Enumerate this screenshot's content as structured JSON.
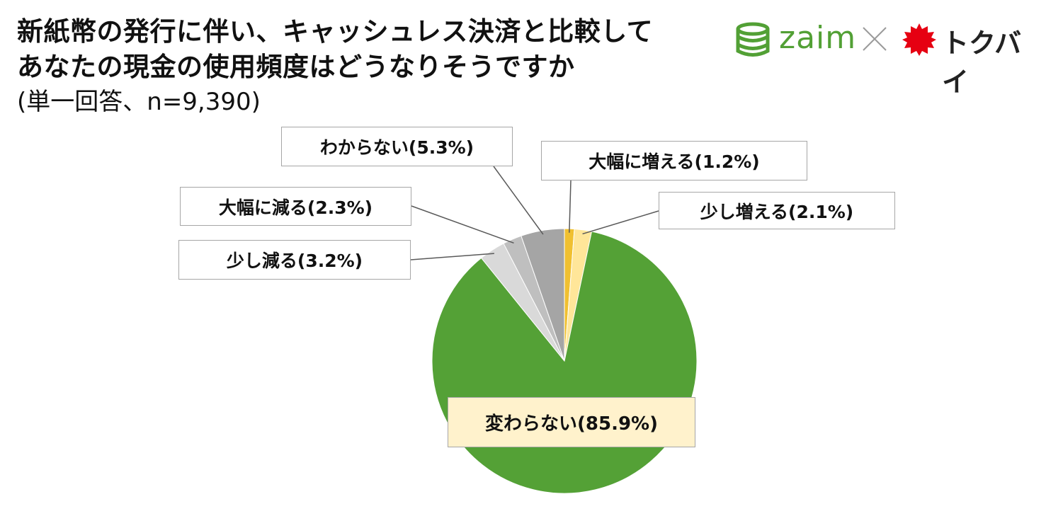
{
  "header": {
    "title_line1": "新紙幣の発行に伴い、キャッシュレス決済と比較して",
    "title_line2": "あなたの現金の使用頻度はどうなりそうですか",
    "subtitle": "(単一回答、n=9,390)"
  },
  "logos": {
    "zaim": "zaim",
    "separator": "×",
    "tokubai": "トクバイ",
    "zaim_color": "#52a035",
    "tokubai_color": "#e60012"
  },
  "chart_data": {
    "type": "pie",
    "title": "新紙幣の発行に伴い、キャッシュレス決済と比較してあなたの現金の使用頻度はどうなりそうですか",
    "subtitle": "(単一回答、n=9,390)",
    "unit": "%",
    "start": "12 o'clock",
    "direction": "clockwise",
    "slices": [
      {
        "label": "大幅に増える",
        "value": 1.2,
        "color": "#f0c030",
        "display": "大幅に増える(1.2%)"
      },
      {
        "label": "少し増える",
        "value": 2.1,
        "color": "#ffe699",
        "display": "少し増える(2.1%)"
      },
      {
        "label": "変わらない",
        "value": 85.9,
        "color": "#54a136",
        "display": "変わらない(85.9%)"
      },
      {
        "label": "少し減る",
        "value": 3.2,
        "color": "#d9d9d9",
        "display": "少し減る(3.2%)"
      },
      {
        "label": "大幅に減る",
        "value": 2.3,
        "color": "#bfbfbf",
        "display": "大幅に減る(2.3%)"
      },
      {
        "label": "わからない",
        "value": 5.3,
        "color": "#a5a5a5",
        "display": "わからない(5.3%)"
      }
    ]
  }
}
